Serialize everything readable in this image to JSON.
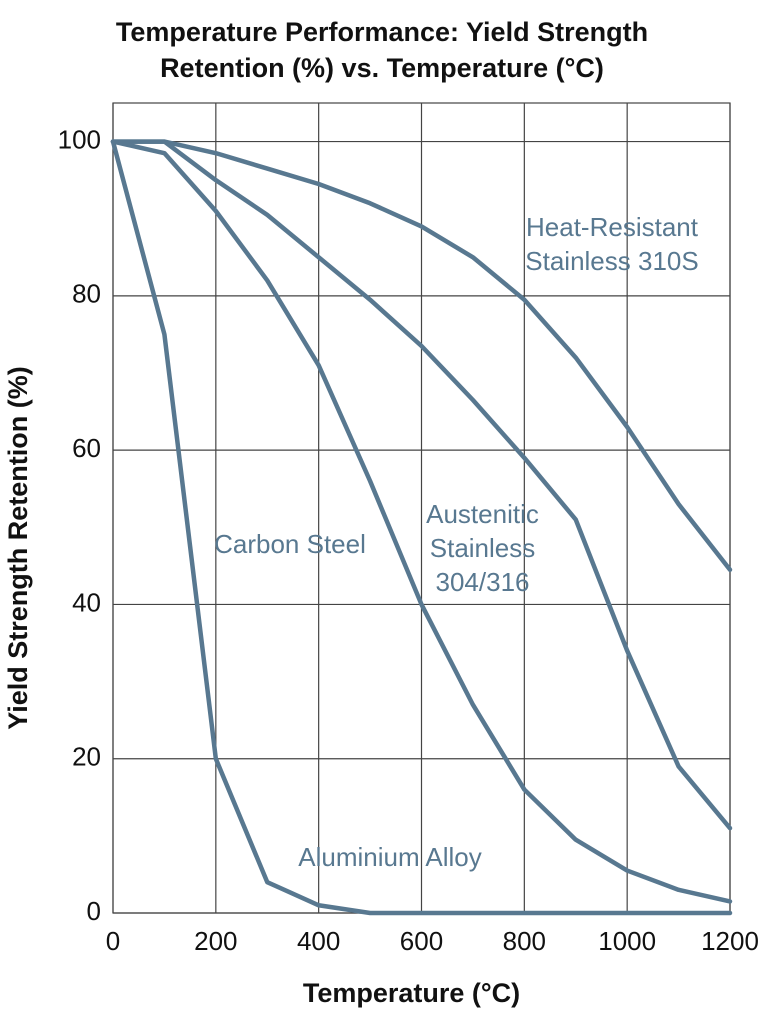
{
  "chart_data": {
    "type": "line",
    "title": "Temperature Performance: Yield Strength Retention (%) vs. Temperature (°C)",
    "x_label": "Temperature (°C)",
    "y_label": "Yield Strength Retention (%)",
    "x": [
      0,
      100,
      200,
      300,
      400,
      500,
      600,
      700,
      800,
      900,
      1000,
      1100,
      1200
    ],
    "series": [
      {
        "name": "Heat-Resistant Stainless 310S",
        "color": "#587890",
        "values": [
          100,
          100,
          98.5,
          96.5,
          94.5,
          92,
          89,
          85,
          79.5,
          72,
          63,
          53,
          44.5
        ]
      },
      {
        "name": "Austenitic Stainless 304/316",
        "color": "#587890",
        "values": [
          100,
          100,
          95,
          90.5,
          85,
          79.5,
          73.5,
          66.5,
          59,
          51,
          34,
          19,
          11
        ]
      },
      {
        "name": "Carbon Steel",
        "color": "#587890",
        "values": [
          100,
          98.5,
          91,
          82,
          71,
          56,
          40,
          27,
          16,
          9.5,
          5.5,
          3,
          1.5
        ]
      },
      {
        "name": "Aluminium Alloy",
        "color": "#587890",
        "values": [
          100,
          75,
          20,
          4,
          1,
          0,
          0,
          0,
          0,
          0,
          0,
          0,
          0
        ]
      }
    ],
    "xlim": [
      0,
      1200
    ],
    "ylim": [
      0,
      105
    ],
    "xticks": [
      0,
      200,
      400,
      600,
      800,
      1000,
      1200
    ],
    "yticks": [
      0,
      20,
      40,
      60,
      80,
      100
    ],
    "grid": true
  }
}
